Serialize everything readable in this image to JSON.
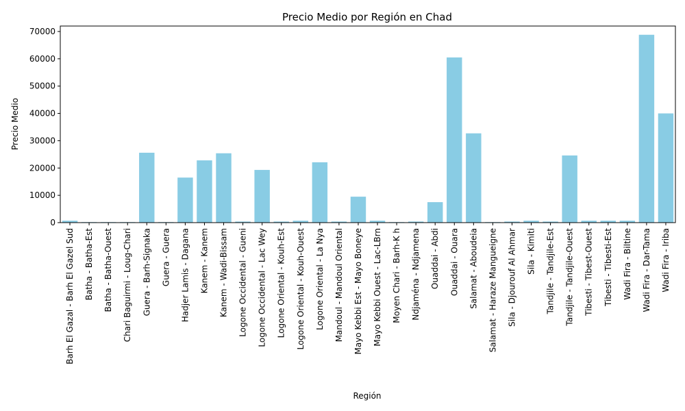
{
  "chart_data": {
    "type": "bar",
    "title": "Precio Medio por Región en Chad",
    "xlabel": "Región",
    "ylabel": "Precio Medio",
    "ylim": [
      0,
      72000
    ],
    "yticks": [
      0,
      10000,
      20000,
      30000,
      40000,
      50000,
      60000,
      70000
    ],
    "grid": false,
    "bar_color": "#89CCE4",
    "categories": [
      "Barh El Gazal - Barh El Gazel Sud",
      "Batha - Batha-Est",
      "Batha - Batha-Ouest",
      "Chari Baguirmi - Loug-Chari",
      "Guera - Barh-Signaka",
      "Guera - Guera",
      "Hadjer Lamis - Dagana",
      "Kanem - Kanem",
      "Kanem - Wadi-Bissam",
      "Logone Occidental - Gueni",
      "Logone Occidental - Lac Wey",
      "Logone Oriental - Kouh-Est",
      "Logone Oriental - Kouh-Ouest",
      "Logone Oriental - La Nya",
      "Mandoul - Mandoul Oriental",
      "Mayo Kebbi Est - Mayo Boneye",
      "Mayo Kebbi Ouest - Lac-LBrn",
      "Moyen Chari - Barh-K h",
      "Ndjaména - Ndjamena",
      "Ouaddai - Abdi",
      "Ouaddai - Ouara",
      "Salamat - Aboudeia",
      "Salamat - Haraze Mangueigne",
      "Sila - Djourouf Al Ahmar",
      "Sila - Kimiti",
      "Tandjile - Tandjile-Est",
      "Tandjile - Tandjile-Ouest",
      "Tibesti - Tibest-Ouest",
      "Tibesti - Tibesti-Est",
      "Wadi Fira - Biltine",
      "Wadi Fira - Dar-Tama",
      "Wadi Fira - Iriba"
    ],
    "values": [
      700,
      200,
      200,
      200,
      25600,
      200,
      16500,
      22800,
      25400,
      400,
      19300,
      400,
      700,
      22100,
      400,
      9500,
      700,
      200,
      400,
      7500,
      60500,
      32700,
      200,
      400,
      700,
      400,
      24600,
      700,
      700,
      700,
      68800,
      40000
    ]
  }
}
